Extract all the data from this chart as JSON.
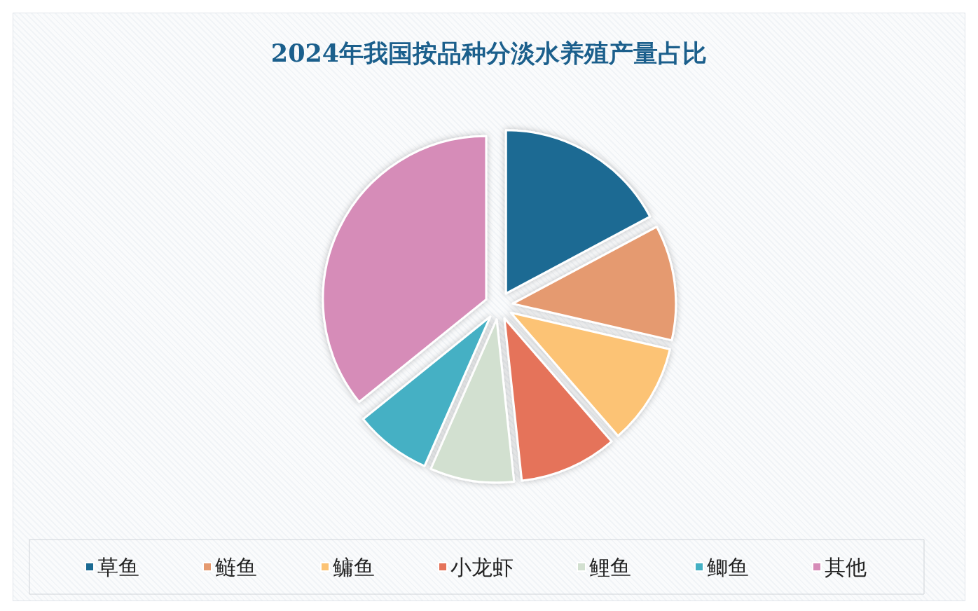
{
  "chart_data": {
    "type": "pie",
    "title": "2024年我国按品种分淡水养殖产量占比",
    "categories": [
      "草鱼",
      "鲢鱼",
      "鳙鱼",
      "小龙虾",
      "鲤鱼",
      "鲫鱼",
      "其他"
    ],
    "values": [
      17.2,
      11.4,
      10.0,
      9.7,
      8.3,
      7.6,
      35.8
    ],
    "colors": [
      "#1a6a93",
      "#e59a70",
      "#fcc374",
      "#e5735a",
      "#d2e0d0",
      "#44b0c4",
      "#d68cb8"
    ],
    "legend": "bottom"
  }
}
